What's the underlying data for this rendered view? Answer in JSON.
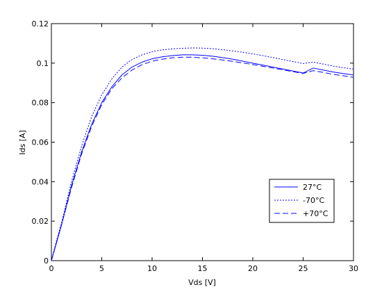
{
  "chart_data": {
    "type": "line",
    "title": "",
    "xlabel": "Vds [V]",
    "ylabel": "Ids [A]",
    "xlim": [
      0,
      30
    ],
    "ylim": [
      0,
      0.12
    ],
    "xticks": [
      0,
      5,
      10,
      15,
      20,
      25,
      30
    ],
    "xtick_labels": [
      "0",
      "5",
      "10",
      "15",
      "20",
      "25",
      "30"
    ],
    "yticks": [
      0,
      0.02,
      0.04,
      0.06,
      0.08,
      0.1,
      0.12
    ],
    "ytick_labels": [
      "0",
      "0.02",
      "0.04",
      "0.06",
      "0.08",
      "0.1",
      "0.12"
    ],
    "grid": false,
    "legend_position": "lower-right",
    "x": [
      0,
      0.5,
      1,
      2,
      3,
      4,
      5,
      6,
      7,
      8,
      9,
      10,
      11,
      12,
      13,
      14,
      15,
      16,
      17,
      18,
      19,
      20,
      21,
      22,
      23,
      24,
      25,
      26,
      27,
      28,
      29,
      30
    ],
    "series": [
      {
        "name": "27°C",
        "style": "solid",
        "color": "#0000ff",
        "values": [
          0,
          0.009,
          0.018,
          0.038,
          0.055,
          0.069,
          0.08,
          0.088,
          0.094,
          0.098,
          0.1005,
          0.1022,
          0.1032,
          0.1038,
          0.1042,
          0.1042,
          0.104,
          0.1035,
          0.1028,
          0.102,
          0.101,
          0.1,
          0.099,
          0.098,
          0.097,
          0.096,
          0.095,
          0.0975,
          0.0965,
          0.0955,
          0.0947,
          0.094
        ]
      },
      {
        "name": "-70°C",
        "style": "dotted",
        "color": "#0000ff",
        "values": [
          0,
          0.01,
          0.019,
          0.04,
          0.058,
          0.073,
          0.084,
          0.092,
          0.098,
          0.1018,
          0.1042,
          0.1058,
          0.1067,
          0.1072,
          0.1075,
          0.1077,
          0.1076,
          0.1073,
          0.1068,
          0.1062,
          0.1055,
          0.1047,
          0.1038,
          0.1028,
          0.1018,
          0.1008,
          0.0998,
          0.1005,
          0.0995,
          0.0985,
          0.0977,
          0.097
        ]
      },
      {
        "name": "+70°C",
        "style": "dashed",
        "color": "#0000ff",
        "values": [
          0,
          0.009,
          0.018,
          0.037,
          0.054,
          0.068,
          0.079,
          0.087,
          0.0925,
          0.0965,
          0.0992,
          0.101,
          0.102,
          0.1027,
          0.103,
          0.103,
          0.1027,
          0.1022,
          0.1016,
          0.1009,
          0.1001,
          0.0993,
          0.0984,
          0.0975,
          0.0966,
          0.0957,
          0.0948,
          0.0962,
          0.0953,
          0.0943,
          0.0936,
          0.0928
        ]
      }
    ]
  }
}
